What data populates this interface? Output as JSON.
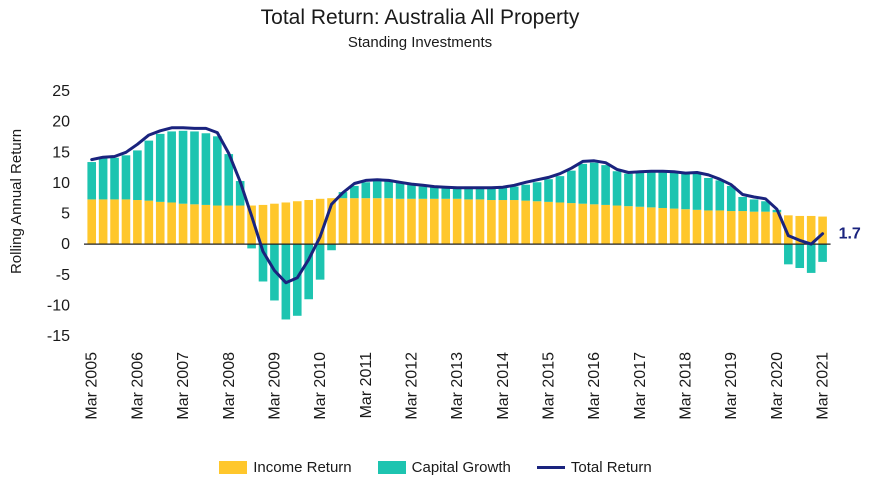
{
  "chart_data": {
    "type": "bar",
    "title": "Total Return: Australia All Property",
    "subtitle": "Standing Investments",
    "ylabel": "Rolling Annual Return",
    "xlabel": "",
    "ylim": [
      -15,
      25
    ],
    "yticks": [
      "25",
      "20",
      "15",
      "10",
      "5",
      "0",
      "-5",
      "-10",
      "-15"
    ],
    "ytick_values": [
      25,
      20,
      15,
      10,
      5,
      0,
      -5,
      -10,
      -15
    ],
    "xtick_labels": [
      "Mar 2005",
      "Mar 2006",
      "Mar 2007",
      "Mar 2008",
      "Mar 2009",
      "Mar 2010",
      "Mar 2011",
      "Mar 2012",
      "Mar 2013",
      "Mar 2014",
      "Mar 2015",
      "Mar 2016",
      "Mar 2017",
      "Mar 2018",
      "Mar 2019",
      "Mar 2020",
      "Mar 2021"
    ],
    "xtick_indices": [
      0,
      4,
      8,
      12,
      16,
      20,
      24,
      28,
      32,
      36,
      40,
      44,
      48,
      52,
      56,
      60,
      64
    ],
    "series": [
      {
        "name": "Income Return",
        "color": "#FFC72C",
        "values": [
          7.3,
          7.3,
          7.3,
          7.3,
          7.2,
          7.1,
          6.9,
          6.8,
          6.6,
          6.5,
          6.4,
          6.3,
          6.3,
          6.3,
          6.3,
          6.4,
          6.6,
          6.8,
          7.0,
          7.2,
          7.4,
          7.5,
          7.5,
          7.5,
          7.5,
          7.5,
          7.5,
          7.4,
          7.4,
          7.4,
          7.4,
          7.4,
          7.4,
          7.3,
          7.3,
          7.2,
          7.2,
          7.2,
          7.1,
          7.0,
          6.9,
          6.8,
          6.7,
          6.6,
          6.5,
          6.4,
          6.3,
          6.2,
          6.1,
          6.0,
          5.9,
          5.8,
          5.7,
          5.6,
          5.5,
          5.5,
          5.4,
          5.4,
          5.3,
          5.3,
          5.2,
          4.7,
          4.6,
          4.6,
          4.5
        ]
      },
      {
        "name": "Capital Growth",
        "color": "#1DC4B0",
        "values": [
          6.1,
          6.7,
          6.8,
          7.2,
          8.1,
          9.8,
          11.1,
          11.6,
          11.9,
          11.9,
          11.7,
          11.3,
          8.4,
          4.0,
          -0.7,
          -6.1,
          -9.2,
          -12.3,
          -11.7,
          -9.0,
          -5.8,
          -1.0,
          1.0,
          2.0,
          2.6,
          2.8,
          2.8,
          2.6,
          2.3,
          2.0,
          1.9,
          1.8,
          1.7,
          1.8,
          1.9,
          2.0,
          2.1,
          2.2,
          2.6,
          3.1,
          3.7,
          4.3,
          5.3,
          6.5,
          6.8,
          6.5,
          5.6,
          5.3,
          5.7,
          5.9,
          6.0,
          6.0,
          5.9,
          5.9,
          5.3,
          4.9,
          4.1,
          2.3,
          2.0,
          1.7,
          0.4,
          -3.3,
          -3.9,
          -4.7,
          -2.9
        ]
      },
      {
        "name": "Total Return",
        "color": "#1A237E",
        "values": [
          13.8,
          14.2,
          14.3,
          15.0,
          16.3,
          17.8,
          18.5,
          19.0,
          19.0,
          18.9,
          18.9,
          18.2,
          14.8,
          10.2,
          4.6,
          -1.2,
          -4.3,
          -6.3,
          -5.5,
          -2.5,
          1.2,
          6.5,
          8.4,
          9.9,
          10.4,
          10.5,
          10.4,
          10.1,
          9.8,
          9.6,
          9.4,
          9.3,
          9.2,
          9.2,
          9.2,
          9.2,
          9.3,
          9.6,
          10.1,
          10.5,
          10.9,
          11.5,
          12.4,
          13.5,
          13.6,
          13.3,
          12.2,
          11.7,
          11.8,
          11.9,
          11.9,
          11.8,
          11.6,
          11.7,
          11.3,
          10.6,
          9.7,
          8.1,
          7.7,
          7.4,
          5.7,
          1.4,
          0.6,
          0.0,
          1.7
        ]
      }
    ],
    "annotations": [
      {
        "text": "1.7",
        "color": "#1A237E"
      }
    ],
    "legend": {
      "position": "bottom",
      "items": [
        "Income Return",
        "Capital Growth",
        "Total Return"
      ]
    },
    "grid": false
  }
}
